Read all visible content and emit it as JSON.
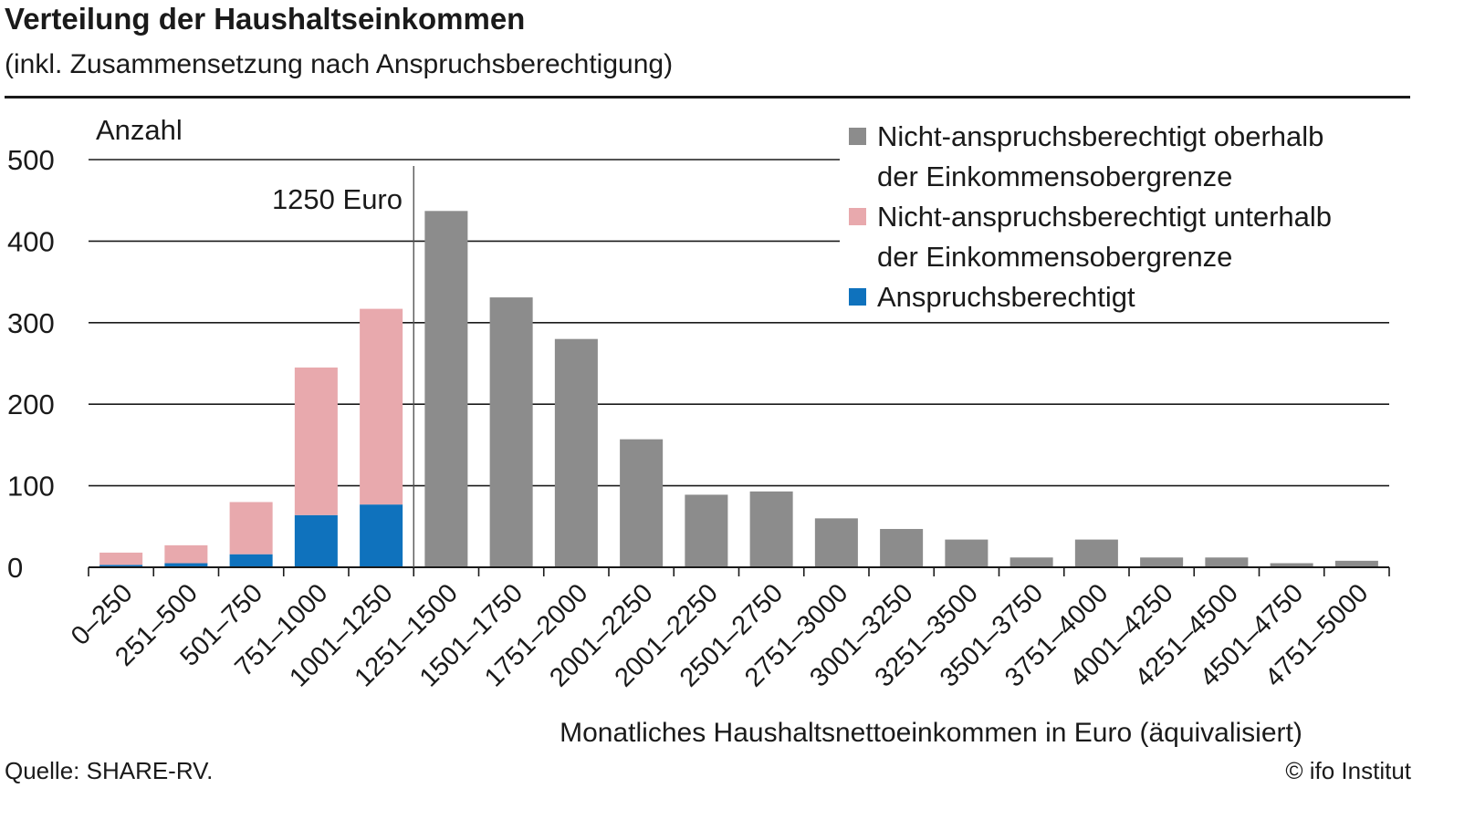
{
  "header": {
    "title": "Verteilung der Haushaltseinkommen",
    "subtitle": "(inkl. Zusammensetzung nach Anspruchsberechtigung)"
  },
  "footer": {
    "source": "Quelle: SHARE-RV.",
    "copyright": "© ifo Institut"
  },
  "legend": {
    "items": [
      {
        "label_line1": "Nicht-anspruchsberechtigt oberhalb",
        "label_line2": "der Einkommensobergrenze",
        "color": "#8c8c8c"
      },
      {
        "label_line1": "Nicht-anspruchsberechtigt unterhalb",
        "label_line2": "der Einkommensobergrenze",
        "color": "#e8a9ad"
      },
      {
        "label_line1": "Anspruchsberechtigt",
        "label_line2": "",
        "color": "#0f72bd"
      }
    ]
  },
  "chart_data": {
    "type": "bar",
    "stacked": true,
    "ylabel": "Anzahl",
    "xlabel": "Monatliches Haushaltsnettoeinkommen in Euro (äquivalisiert)",
    "ylim": [
      0,
      500
    ],
    "yticks": [
      0,
      100,
      200,
      300,
      400,
      500
    ],
    "grid": true,
    "legend_position": "top-right",
    "annotation": "1250 Euro",
    "annotation_after_category": "1001–1250",
    "categories": [
      "0–250",
      "251–500",
      "501–750",
      "751–1000",
      "1001–1250",
      "1251–1500",
      "1501–1750",
      "1751–2000",
      "2001–2250",
      "2001–2250",
      "2501–2750",
      "2751–3000",
      "3001–3250",
      "3251–3500",
      "3501–3750",
      "3751–4000",
      "4001–4250",
      "4251–4500",
      "4501–4750",
      "4751–5000"
    ],
    "series": [
      {
        "name": "Anspruchsberechtigt",
        "color": "#0f72bd",
        "values": [
          3,
          5,
          16,
          64,
          77,
          0,
          0,
          0,
          0,
          0,
          0,
          0,
          0,
          0,
          0,
          0,
          0,
          0,
          0,
          0
        ]
      },
      {
        "name": "Nicht-anspruchsberechtigt unterhalb der Einkommensobergrenze",
        "color": "#e8a9ad",
        "values": [
          15,
          22,
          64,
          181,
          240,
          0,
          0,
          0,
          0,
          0,
          0,
          0,
          0,
          0,
          0,
          0,
          0,
          0,
          0,
          0
        ]
      },
      {
        "name": "Nicht-anspruchsberechtigt oberhalb der Einkommensobergrenze",
        "color": "#8c8c8c",
        "values": [
          0,
          0,
          0,
          0,
          0,
          437,
          331,
          280,
          157,
          89,
          93,
          60,
          47,
          34,
          12,
          34,
          12,
          12,
          5,
          8
        ]
      }
    ]
  }
}
